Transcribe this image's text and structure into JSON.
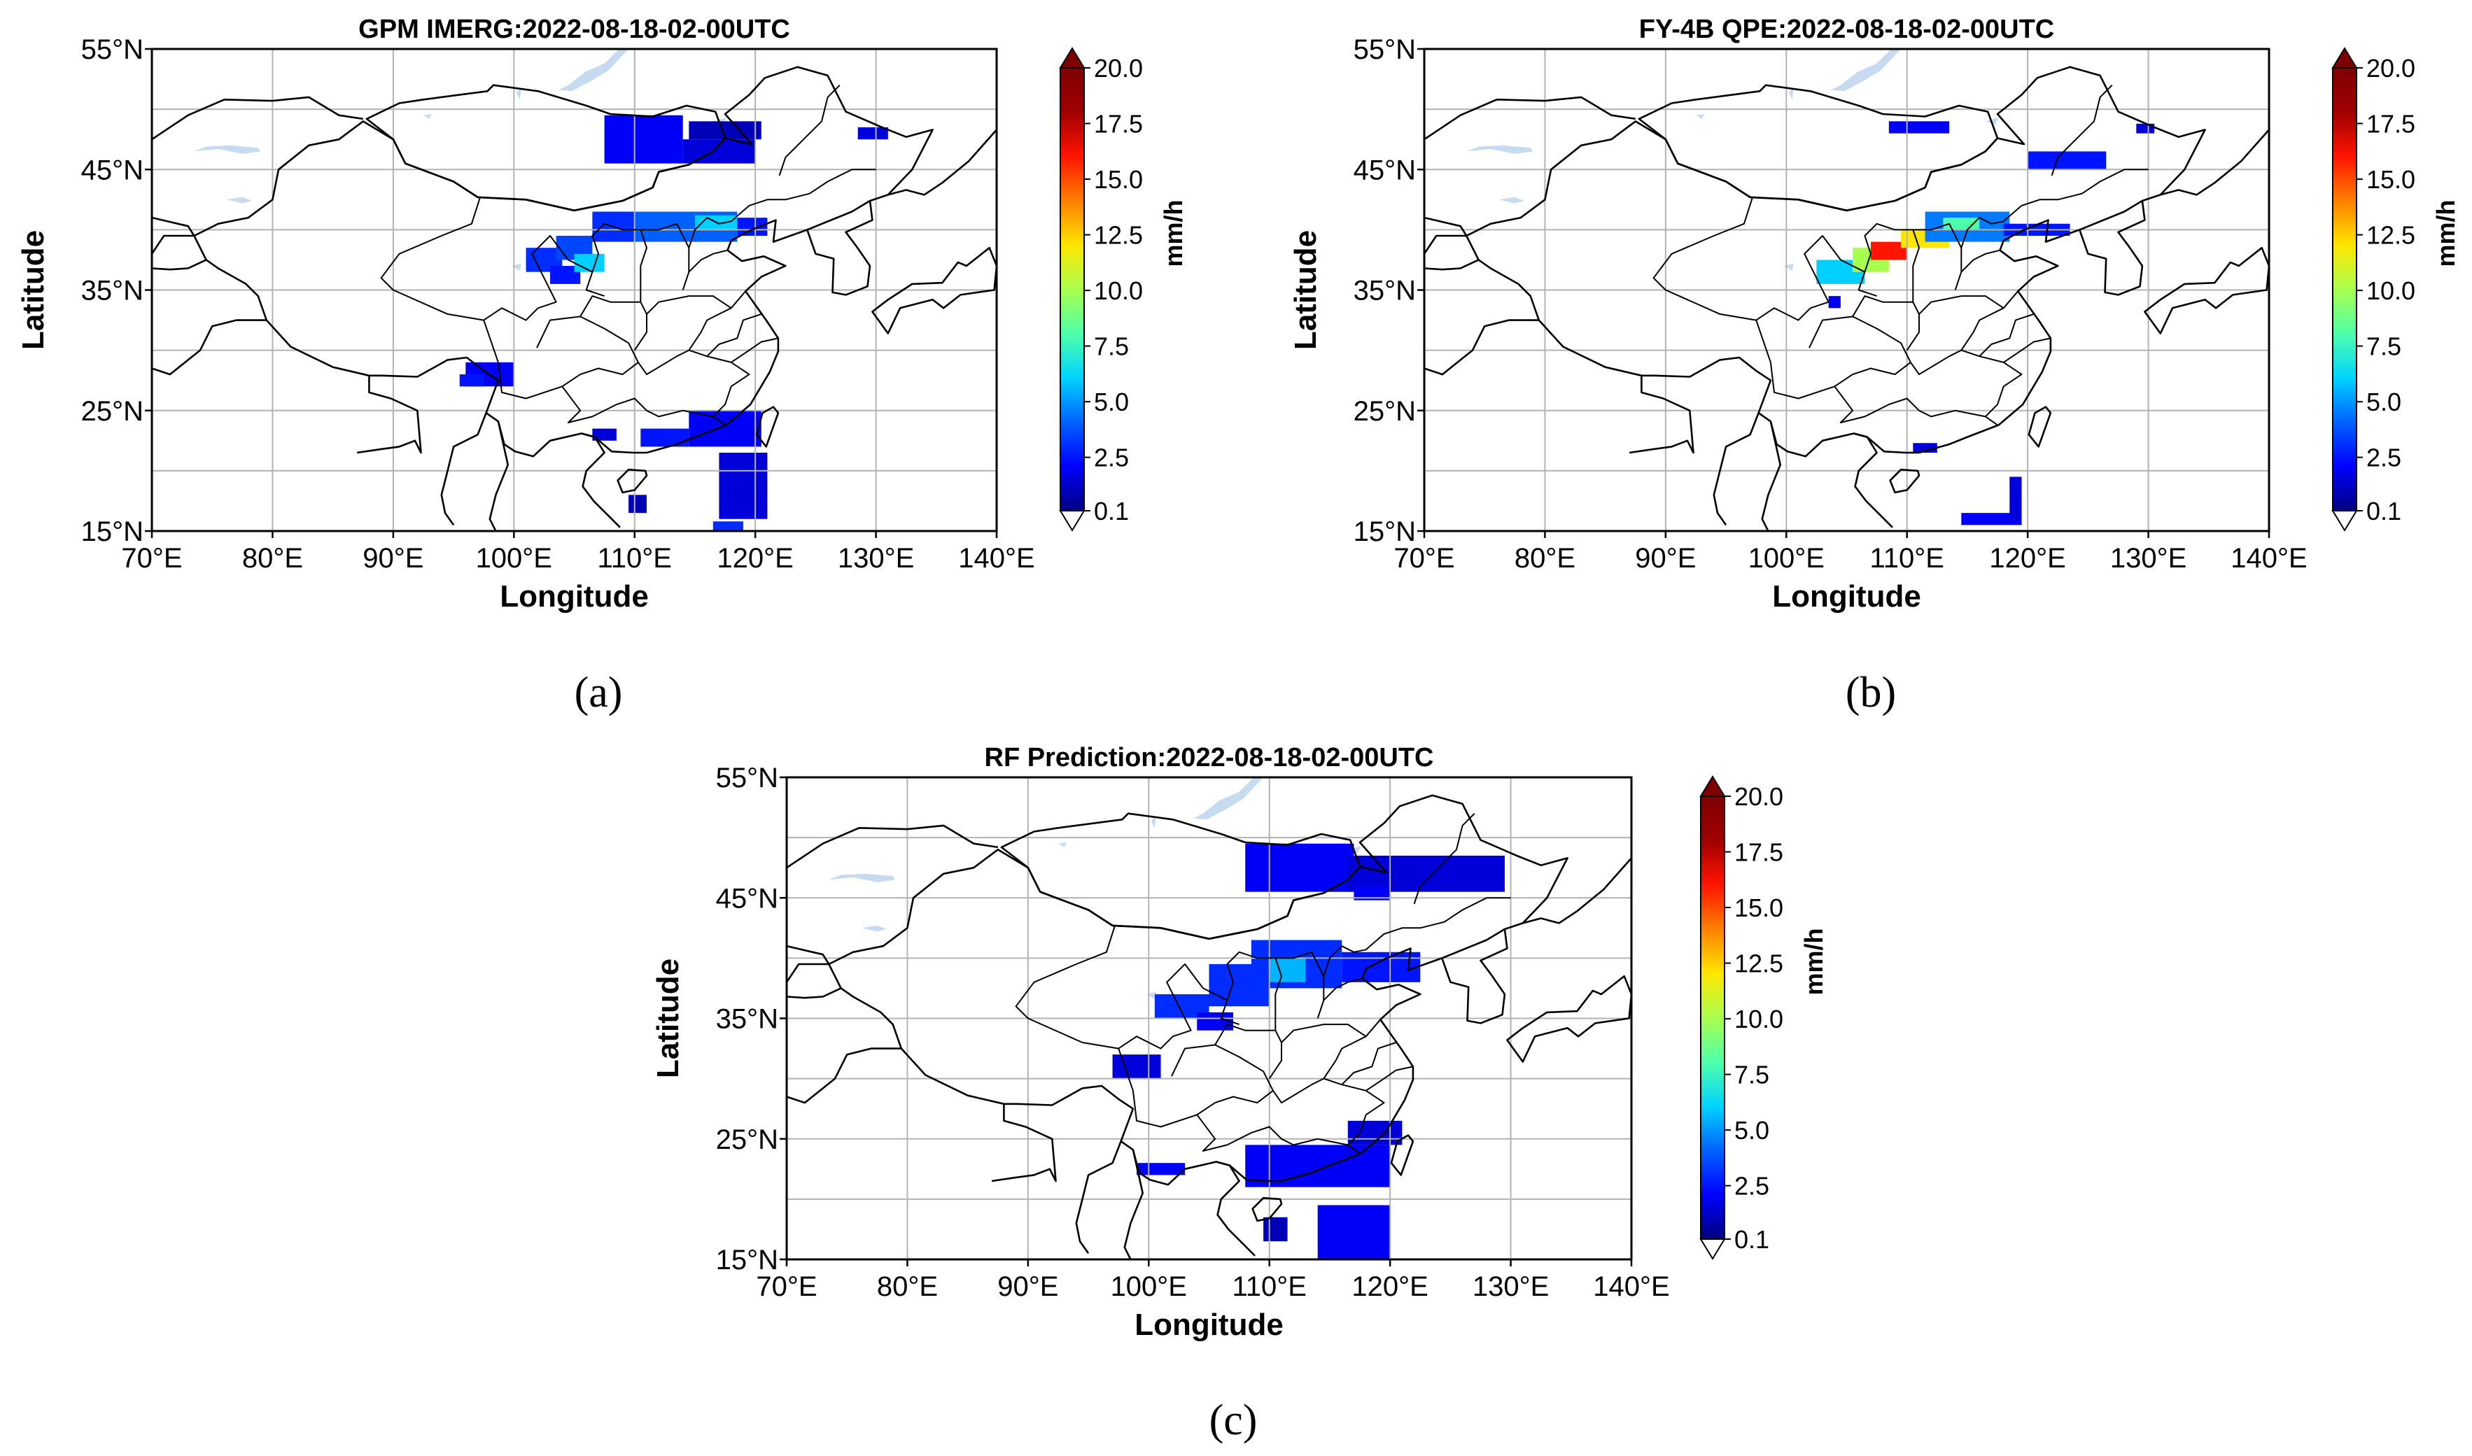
{
  "colors": {
    "background": "#ffffff",
    "axes": "#000000",
    "grid": "#b3b3b3",
    "coast": "#000000",
    "lakes": "#c6dbef",
    "colormap": [
      "#00007f",
      "#0000ff",
      "#0063ff",
      "#00d4ff",
      "#4effa9",
      "#a9ff4e",
      "#ffe600",
      "#ff7f00",
      "#ff1400",
      "#a00000",
      "#7f0000"
    ],
    "under": "#ffffff"
  },
  "chart_data": [
    {
      "type": "heatmap",
      "panel_label": "(a)",
      "title": "GPM IMERG:2022-08-18-02-00UTC",
      "xlabel": "Longitude",
      "ylabel": "Latitude",
      "xlim": [
        70,
        140
      ],
      "ylim": [
        15,
        55
      ],
      "x_ticks": [
        70,
        80,
        90,
        100,
        110,
        120,
        130,
        140
      ],
      "x_tick_labels": [
        "70°E",
        "80°E",
        "90°E",
        "100°E",
        "110°E",
        "120°E",
        "130°E",
        "140°E"
      ],
      "y_ticks": [
        15,
        25,
        35,
        45,
        55
      ],
      "y_tick_labels": [
        "15°N",
        "25°N",
        "35°N",
        "45°N",
        "55°N"
      ],
      "grid_lon": [
        70,
        80,
        90,
        100,
        110,
        120,
        130,
        140
      ],
      "grid_lat": [
        15,
        20,
        25,
        30,
        35,
        40,
        45,
        50,
        55
      ],
      "grid": true,
      "colorbar": {
        "label": "mm/h",
        "ticks": [
          0.1,
          2.5,
          5.0,
          7.5,
          10.0,
          12.5,
          15.0,
          17.5,
          20.0
        ],
        "tick_labels": [
          "0.1",
          "2.5",
          "5.0",
          "7.5",
          "10.0",
          "12.5",
          "15.0",
          "17.5",
          "20.0"
        ],
        "vmin": 0.1,
        "vmax": 20.0,
        "extend": "both"
      },
      "precip_regions": [
        {
          "lon": [
            107.5,
            114.0
          ],
          "lat": [
            45.5,
            49.5
          ],
          "value": 2.0
        },
        {
          "lon": [
            114.0,
            120.0
          ],
          "lat": [
            45.5,
            47.5
          ],
          "value": 1.5
        },
        {
          "lon": [
            114.5,
            120.5
          ],
          "lat": [
            47.5,
            49.0
          ],
          "value": 1.0
        },
        {
          "lon": [
            128.5,
            131.0
          ],
          "lat": [
            47.5,
            48.5
          ],
          "value": 1.5
        },
        {
          "lon": [
            101.0,
            104.0
          ],
          "lat": [
            36.5,
            38.5
          ],
          "value": 3.0
        },
        {
          "lon": [
            103.5,
            106.5
          ],
          "lat": [
            37.5,
            39.5
          ],
          "value": 3.5
        },
        {
          "lon": [
            106.5,
            110.0
          ],
          "lat": [
            39.0,
            41.5
          ],
          "value": 3.0
        },
        {
          "lon": [
            110.0,
            118.5
          ],
          "lat": [
            39.0,
            41.5
          ],
          "value": 4.0
        },
        {
          "lon": [
            115.0,
            118.5
          ],
          "lat": [
            40.0,
            41.2
          ],
          "value": 6.0
        },
        {
          "lon": [
            118.5,
            121.0
          ],
          "lat": [
            39.5,
            41.0
          ],
          "value": 2.5
        },
        {
          "lon": [
            103.0,
            105.5
          ],
          "lat": [
            35.5,
            37.0
          ],
          "value": 2.5
        },
        {
          "lon": [
            105.0,
            107.5
          ],
          "lat": [
            36.5,
            38.0
          ],
          "value": 6.0
        },
        {
          "lon": [
            96.0,
            100.0
          ],
          "lat": [
            27.0,
            29.0
          ],
          "value": 2.0
        },
        {
          "lon": [
            95.5,
            97.5
          ],
          "lat": [
            27.0,
            28.0
          ],
          "value": 2.5
        },
        {
          "lon": [
            110.5,
            114.5
          ],
          "lat": [
            22.0,
            23.5
          ],
          "value": 2.5
        },
        {
          "lon": [
            114.5,
            120.5
          ],
          "lat": [
            22.0,
            25.0
          ],
          "value": 2.0
        },
        {
          "lon": [
            117.0,
            121.0
          ],
          "lat": [
            16.0,
            21.5
          ],
          "value": 1.5
        },
        {
          "lon": [
            116.5,
            119.0
          ],
          "lat": [
            15.0,
            15.8
          ],
          "value": 3.0
        },
        {
          "lon": [
            106.5,
            108.5
          ],
          "lat": [
            22.5,
            23.5
          ],
          "value": 1.5
        },
        {
          "lon": [
            109.5,
            111.0
          ],
          "lat": [
            16.5,
            18.0
          ],
          "value": 1.0
        }
      ]
    },
    {
      "type": "heatmap",
      "panel_label": "(b)",
      "title": "FY-4B QPE:2022-08-18-02-00UTC",
      "xlabel": "Longitude",
      "ylabel": "Latitude",
      "xlim": [
        70,
        140
      ],
      "ylim": [
        15,
        55
      ],
      "x_ticks": [
        70,
        80,
        90,
        100,
        110,
        120,
        130,
        140
      ],
      "x_tick_labels": [
        "70°E",
        "80°E",
        "90°E",
        "100°E",
        "110°E",
        "120°E",
        "130°E",
        "140°E"
      ],
      "y_ticks": [
        15,
        25,
        35,
        45,
        55
      ],
      "y_tick_labels": [
        "15°N",
        "25°N",
        "35°N",
        "45°N",
        "55°N"
      ],
      "grid_lon": [
        70,
        80,
        90,
        100,
        110,
        120,
        130,
        140
      ],
      "grid_lat": [
        15,
        20,
        25,
        30,
        35,
        40,
        45,
        50,
        55
      ],
      "grid": true,
      "colorbar": {
        "label": "mm/h",
        "ticks": [
          0.1,
          2.5,
          5.0,
          7.5,
          10.0,
          12.5,
          15.0,
          17.5,
          20.0
        ],
        "tick_labels": [
          "0.1",
          "2.5",
          "5.0",
          "7.5",
          "10.0",
          "12.5",
          "15.0",
          "17.5",
          "20.0"
        ],
        "vmin": 0.1,
        "vmax": 20.0,
        "extend": "both"
      },
      "precip_regions": [
        {
          "lon": [
            108.5,
            113.5
          ],
          "lat": [
            48.0,
            49.0
          ],
          "value": 2.0
        },
        {
          "lon": [
            120.0,
            126.5
          ],
          "lat": [
            45.0,
            46.5
          ],
          "value": 2.5
        },
        {
          "lon": [
            129.0,
            130.5
          ],
          "lat": [
            48.0,
            48.8
          ],
          "value": 1.5
        },
        {
          "lon": [
            102.5,
            106.5
          ],
          "lat": [
            35.5,
            37.5
          ],
          "value": 6.0
        },
        {
          "lon": [
            105.5,
            108.5
          ],
          "lat": [
            36.5,
            38.5
          ],
          "value": 10.0
        },
        {
          "lon": [
            107.0,
            110.0
          ],
          "lat": [
            37.5,
            39.0
          ],
          "value": 16.0
        },
        {
          "lon": [
            109.5,
            113.5
          ],
          "lat": [
            38.5,
            40.0
          ],
          "value": 12.0
        },
        {
          "lon": [
            111.5,
            118.5
          ],
          "lat": [
            39.0,
            41.5
          ],
          "value": 4.5
        },
        {
          "lon": [
            113.0,
            116.0
          ],
          "lat": [
            40.0,
            41.0
          ],
          "value": 8.0
        },
        {
          "lon": [
            118.0,
            123.5
          ],
          "lat": [
            39.5,
            40.5
          ],
          "value": 2.5
        },
        {
          "lon": [
            110.5,
            112.5
          ],
          "lat": [
            21.5,
            22.3
          ],
          "value": 1.5
        },
        {
          "lon": [
            114.5,
            119.5
          ],
          "lat": [
            15.5,
            16.5
          ],
          "value": 2.0
        },
        {
          "lon": [
            118.5,
            119.5
          ],
          "lat": [
            16.0,
            19.5
          ],
          "value": 1.5
        },
        {
          "lon": [
            103.5,
            104.5
          ],
          "lat": [
            33.5,
            34.5
          ],
          "value": 2.0
        }
      ]
    },
    {
      "type": "heatmap",
      "panel_label": "(c)",
      "title": "RF Prediction:2022-08-18-02-00UTC",
      "xlabel": "Longitude",
      "ylabel": "Latitude",
      "xlim": [
        70,
        140
      ],
      "ylim": [
        15,
        55
      ],
      "x_ticks": [
        70,
        80,
        90,
        100,
        110,
        120,
        130,
        140
      ],
      "x_tick_labels": [
        "70°E",
        "80°E",
        "90°E",
        "100°E",
        "110°E",
        "120°E",
        "130°E",
        "140°E"
      ],
      "y_ticks": [
        15,
        25,
        35,
        45,
        55
      ],
      "y_tick_labels": [
        "15°N",
        "25°N",
        "35°N",
        "45°N",
        "55°N"
      ],
      "grid_lon": [
        70,
        80,
        90,
        100,
        110,
        120,
        130,
        140
      ],
      "grid_lat": [
        15,
        20,
        25,
        30,
        35,
        40,
        45,
        50,
        55
      ],
      "grid": true,
      "colorbar": {
        "label": "mm/h",
        "ticks": [
          0.1,
          2.5,
          5.0,
          7.5,
          10.0,
          12.5,
          15.0,
          17.5,
          20.0
        ],
        "tick_labels": [
          "0.1",
          "2.5",
          "5.0",
          "7.5",
          "10.0",
          "12.5",
          "15.0",
          "17.5",
          "20.0"
        ],
        "vmin": 0.1,
        "vmax": 20.0,
        "extend": "both"
      },
      "precip_regions": [
        {
          "lon": [
            108.0,
            117.0
          ],
          "lat": [
            45.5,
            49.5
          ],
          "value": 2.0
        },
        {
          "lon": [
            116.5,
            129.5
          ],
          "lat": [
            45.5,
            48.5
          ],
          "value": 1.5
        },
        {
          "lon": [
            117.0,
            120.0
          ],
          "lat": [
            44.8,
            46.0
          ],
          "value": 2.0
        },
        {
          "lon": [
            100.5,
            105.0
          ],
          "lat": [
            35.0,
            37.0
          ],
          "value": 3.0
        },
        {
          "lon": [
            105.0,
            110.0
          ],
          "lat": [
            36.0,
            39.5
          ],
          "value": 3.0
        },
        {
          "lon": [
            108.5,
            116.0
          ],
          "lat": [
            37.5,
            41.5
          ],
          "value": 3.0
        },
        {
          "lon": [
            110.0,
            113.0
          ],
          "lat": [
            38.0,
            40.0
          ],
          "value": 5.5
        },
        {
          "lon": [
            116.0,
            122.5
          ],
          "lat": [
            38.0,
            40.5
          ],
          "value": 2.5
        },
        {
          "lon": [
            104.0,
            107.0
          ],
          "lat": [
            34.0,
            35.5
          ],
          "value": 2.0
        },
        {
          "lon": [
            97.0,
            101.0
          ],
          "lat": [
            30.0,
            32.0
          ],
          "value": 1.5
        },
        {
          "lon": [
            99.0,
            103.0
          ],
          "lat": [
            22.0,
            23.0
          ],
          "value": 2.0
        },
        {
          "lon": [
            108.0,
            120.0
          ],
          "lat": [
            21.0,
            24.5
          ],
          "value": 2.0
        },
        {
          "lon": [
            116.5,
            121.0
          ],
          "lat": [
            24.5,
            26.5
          ],
          "value": 1.5
        },
        {
          "lon": [
            114.0,
            120.0
          ],
          "lat": [
            15.0,
            19.5
          ],
          "value": 2.0
        },
        {
          "lon": [
            109.5,
            111.5
          ],
          "lat": [
            16.5,
            18.5
          ],
          "value": 1.0
        }
      ]
    }
  ]
}
